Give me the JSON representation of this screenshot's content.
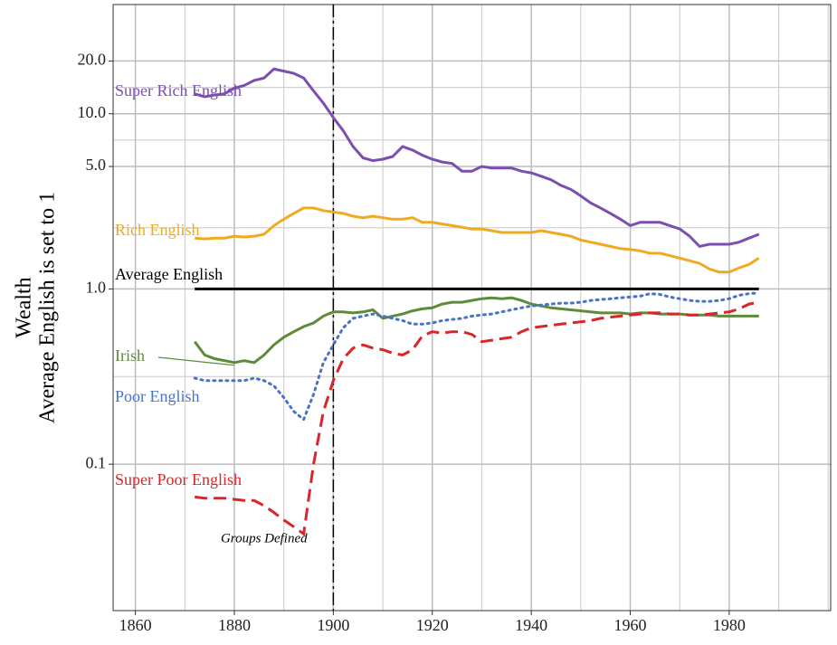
{
  "chart_data": {
    "type": "line",
    "log_y": true,
    "grid": true,
    "ylabel": [
      "Wealth",
      "Average English is set to 1"
    ],
    "annotation": {
      "text": "Groups Defined",
      "x": 1886,
      "y": 0.04
    },
    "vline": 1900,
    "xlim": [
      1855.5,
      2000.5
    ],
    "xticks": [
      1860,
      1880,
      1900,
      1920,
      1940,
      1960,
      1980
    ],
    "ylim": [
      0.0146,
      42
    ],
    "yticks": [
      {
        "value": 0.1,
        "label": "0.1"
      },
      {
        "value": 1,
        "label": "1.0"
      },
      {
        "value": 5,
        "label": "5.0"
      },
      {
        "value": 10,
        "label": "10.0"
      },
      {
        "value": 20,
        "label": "20.0"
      }
    ],
    "x": [
      1872,
      1874,
      1876,
      1878,
      1880,
      1882,
      1884,
      1886,
      1888,
      1890,
      1892,
      1894,
      1896,
      1898,
      1900,
      1902,
      1904,
      1906,
      1908,
      1910,
      1912,
      1914,
      1916,
      1918,
      1920,
      1922,
      1924,
      1926,
      1928,
      1930,
      1932,
      1934,
      1936,
      1938,
      1940,
      1942,
      1944,
      1946,
      1948,
      1950,
      1952,
      1954,
      1956,
      1958,
      1960,
      1962,
      1964,
      1966,
      1968,
      1970,
      1972,
      1974,
      1976,
      1978,
      1980,
      1982,
      1984,
      1986
    ],
    "series": [
      {
        "name": "Super Rich English",
        "color": "#7b4fb0",
        "dash": "solid",
        "values": [
          13,
          12.5,
          12.8,
          13,
          14,
          14.5,
          15.5,
          16,
          18,
          17.5,
          17,
          16,
          13.5,
          11.5,
          9.5,
          8,
          6.5,
          5.6,
          5.4,
          5.5,
          5.7,
          6.5,
          6.2,
          5.8,
          5.5,
          5.3,
          5.2,
          4.7,
          4.7,
          5.0,
          4.9,
          4.9,
          4.9,
          4.7,
          4.6,
          4.4,
          4.2,
          3.9,
          3.7,
          3.4,
          3.1,
          2.9,
          2.7,
          2.5,
          2.3,
          2.4,
          2.4,
          2.4,
          2.3,
          2.2,
          2.0,
          1.75,
          1.8,
          1.8,
          1.8,
          1.85,
          1.95,
          2.05
        ]
      },
      {
        "name": "Rich English",
        "color": "#f0aa22",
        "dash": "solid",
        "values": [
          1.95,
          1.93,
          1.95,
          1.95,
          2.0,
          1.98,
          2.0,
          2.05,
          2.3,
          2.5,
          2.7,
          2.9,
          2.9,
          2.8,
          2.75,
          2.7,
          2.6,
          2.55,
          2.6,
          2.55,
          2.5,
          2.5,
          2.55,
          2.4,
          2.4,
          2.35,
          2.3,
          2.25,
          2.2,
          2.2,
          2.15,
          2.1,
          2.1,
          2.1,
          2.1,
          2.15,
          2.1,
          2.05,
          2.0,
          1.9,
          1.85,
          1.8,
          1.75,
          1.7,
          1.68,
          1.65,
          1.6,
          1.6,
          1.55,
          1.5,
          1.45,
          1.4,
          1.3,
          1.25,
          1.25,
          1.32,
          1.38,
          1.5
        ]
      },
      {
        "name": "Average English",
        "color": "#000000",
        "dash": "solid",
        "values": [
          1,
          1,
          1,
          1,
          1,
          1,
          1,
          1,
          1,
          1,
          1,
          1,
          1,
          1,
          1,
          1,
          1,
          1,
          1,
          1,
          1,
          1,
          1,
          1,
          1,
          1,
          1,
          1,
          1,
          1,
          1,
          1,
          1,
          1,
          1,
          1,
          1,
          1,
          1,
          1,
          1,
          1,
          1,
          1,
          1,
          1,
          1,
          1,
          1,
          1,
          1,
          1,
          1,
          1,
          1,
          1,
          1,
          1
        ]
      },
      {
        "name": "Irish",
        "color": "#5e8b3a",
        "dash": "solid",
        "values": [
          0.5,
          0.42,
          0.4,
          0.39,
          0.38,
          0.39,
          0.38,
          0.42,
          0.48,
          0.53,
          0.57,
          0.61,
          0.64,
          0.7,
          0.74,
          0.74,
          0.73,
          0.74,
          0.76,
          0.68,
          0.7,
          0.72,
          0.75,
          0.77,
          0.78,
          0.82,
          0.84,
          0.84,
          0.86,
          0.88,
          0.89,
          0.88,
          0.89,
          0.86,
          0.82,
          0.8,
          0.78,
          0.77,
          0.76,
          0.75,
          0.74,
          0.73,
          0.73,
          0.73,
          0.72,
          0.73,
          0.73,
          0.72,
          0.72,
          0.72,
          0.71,
          0.71,
          0.71,
          0.7,
          0.7,
          0.7,
          0.7,
          0.7
        ]
      },
      {
        "name": "Poor English",
        "color": "#4a72c8",
        "dash": "dotted",
        "values": [
          0.31,
          0.3,
          0.3,
          0.3,
          0.3,
          0.3,
          0.31,
          0.3,
          0.28,
          0.24,
          0.2,
          0.18,
          0.25,
          0.38,
          0.48,
          0.6,
          0.68,
          0.7,
          0.72,
          0.7,
          0.68,
          0.66,
          0.63,
          0.63,
          0.64,
          0.66,
          0.67,
          0.68,
          0.7,
          0.71,
          0.72,
          0.74,
          0.76,
          0.78,
          0.8,
          0.81,
          0.82,
          0.83,
          0.83,
          0.84,
          0.86,
          0.87,
          0.88,
          0.89,
          0.9,
          0.91,
          0.94,
          0.93,
          0.9,
          0.88,
          0.86,
          0.85,
          0.85,
          0.86,
          0.88,
          0.92,
          0.94,
          0.95
        ]
      },
      {
        "name": "Super Poor English",
        "color": "#d9262a",
        "dash": "dashed",
        "values": [
          0.065,
          0.064,
          0.064,
          0.064,
          0.063,
          0.062,
          0.062,
          0.058,
          0.053,
          0.048,
          0.044,
          0.04,
          0.1,
          0.2,
          0.3,
          0.4,
          0.46,
          0.48,
          0.46,
          0.45,
          0.43,
          0.42,
          0.45,
          0.54,
          0.57,
          0.56,
          0.57,
          0.57,
          0.55,
          0.5,
          0.51,
          0.52,
          0.53,
          0.57,
          0.6,
          0.61,
          0.62,
          0.63,
          0.64,
          0.65,
          0.66,
          0.68,
          0.69,
          0.7,
          0.71,
          0.72,
          0.73,
          0.73,
          0.72,
          0.72,
          0.71,
          0.71,
          0.72,
          0.73,
          0.74,
          0.77,
          0.82,
          0.84
        ]
      }
    ]
  }
}
